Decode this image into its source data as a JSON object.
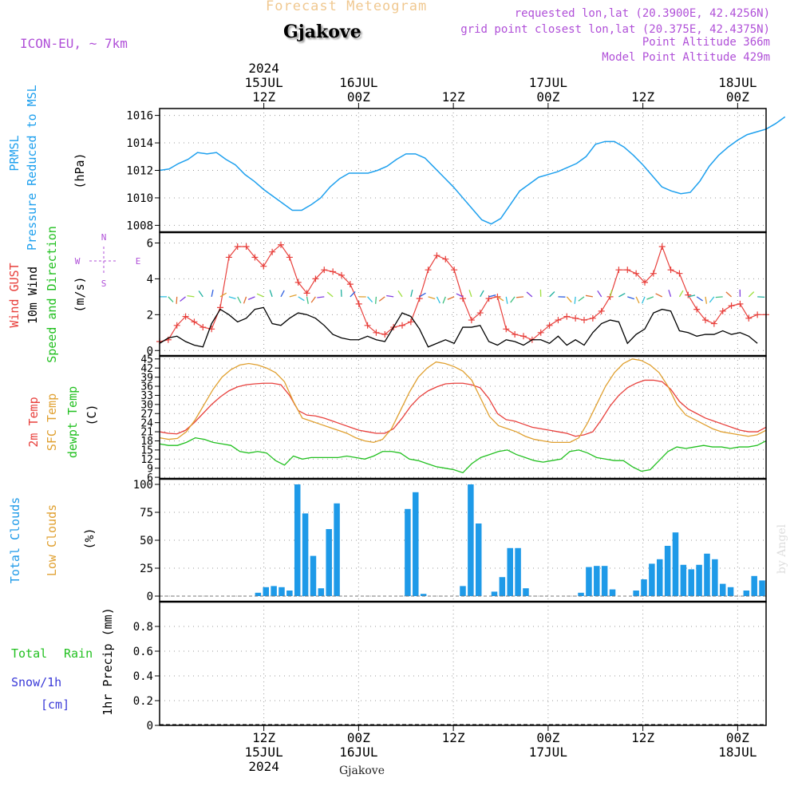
{
  "header": {
    "meteogram_title": "Forecast Meteogram",
    "location": "Gjakove",
    "model": "ICON-EU, ~ 7km",
    "requested": "requested lon,lat (20.3900E, 42.4256N)",
    "gridpoint": "grid point closest lon,lat (20.375E, 42.4375N)",
    "point_altitude": "Point Altitude 366m",
    "model_altitude": "Model Point Altitude 429m",
    "footer_location": "Gjakove",
    "credit": "by Angel"
  },
  "time_axis": {
    "start_hour": 1,
    "end_hour": 65,
    "top_labels": [
      {
        "hour": 12,
        "lines": [
          "2024",
          "15JUL",
          "12Z"
        ]
      },
      {
        "hour": 22,
        "lines": [
          "16JUL",
          "00Z"
        ]
      },
      {
        "hour": 32,
        "lines": [
          "12Z"
        ]
      },
      {
        "hour": 42,
        "lines": [
          "17JUL",
          "00Z"
        ]
      },
      {
        "hour": 52,
        "lines": [
          "12Z"
        ]
      },
      {
        "hour": 62,
        "lines": [
          "18JUL",
          "00Z"
        ]
      }
    ],
    "bottom_labels": [
      {
        "hour": 12,
        "lines": [
          "12Z",
          "15JUL",
          "2024"
        ]
      },
      {
        "hour": 22,
        "lines": [
          "00Z",
          "16JUL"
        ]
      },
      {
        "hour": 32,
        "lines": [
          "12Z"
        ]
      },
      {
        "hour": 42,
        "lines": [
          "00Z",
          "17JUL"
        ]
      },
      {
        "hour": 52,
        "lines": [
          "12Z"
        ]
      },
      {
        "hour": 62,
        "lines": [
          "00Z",
          "18JUL"
        ]
      }
    ]
  },
  "panels": {
    "pressure": {
      "label_lines": [
        "PRMSL",
        "Pressure Reduced to MSL"
      ],
      "unit": "(hPa)",
      "ticks": [
        1008,
        1010,
        1012,
        1014,
        1016
      ],
      "color": "#1ea0ee"
    },
    "wind": {
      "gust_label": "Wind GUST",
      "wind_label": "10m Wind",
      "dir_label": "Speed and Direction",
      "unit": "(m/s)",
      "ticks": [
        0,
        2,
        4,
        6
      ],
      "compass": {
        "n": "N",
        "s": "S",
        "w": "W",
        "e": "E"
      },
      "gust_color": "#e8403c",
      "wind_color": "#000000"
    },
    "temperature": {
      "temp_label": "2m Temp",
      "sfc_label": "SFC Temp",
      "dew_label": "dewpt Temp",
      "unit": "(C)",
      "ticks": [
        6,
        9,
        12,
        15,
        18,
        21,
        24,
        27,
        30,
        33,
        36,
        39,
        42,
        45
      ],
      "temp_color": "#e8403c",
      "sfc_color": "#e0a030",
      "dew_color": "#22c020"
    },
    "clouds": {
      "total_label": "Total Clouds",
      "low_label": "Low Clouds",
      "unit": "(%)",
      "ticks": [
        0,
        25,
        50,
        75,
        100
      ],
      "total_color": "#1e9ae8",
      "low_color": "#e0a030"
    },
    "precip": {
      "total_label": "Total",
      "rain_label": "Rain",
      "snow_label": "Snow/1h",
      "snow_unit": "[cm]",
      "unit": "1hr Precip (mm)",
      "ticks": [
        "0",
        "0.2",
        "0.4",
        "0.6",
        "0.8"
      ]
    }
  },
  "chart_data": [
    {
      "type": "line",
      "title": "PRMSL Pressure Reduced to MSL",
      "ylabel": "(hPa)",
      "ylim": [
        1007.5,
        1016.5
      ],
      "x_start_hour": 1,
      "x_step_hours": 1,
      "series": [
        {
          "name": "PRMSL",
          "values": [
            1012.0,
            1012.1,
            1012.5,
            1012.8,
            1013.3,
            1013.2,
            1013.3,
            1012.8,
            1012.4,
            1011.7,
            1011.2,
            1010.6,
            1010.1,
            1009.6,
            1009.1,
            1009.1,
            1009.5,
            1010.0,
            1010.8,
            1011.4,
            1011.8,
            1011.8,
            1011.8,
            1012.0,
            1012.3,
            1012.8,
            1013.2,
            1013.2,
            1012.9,
            1012.2,
            1011.5,
            1010.8,
            1010.0,
            1009.2,
            1008.4,
            1008.1,
            1008.5,
            1009.5,
            1010.5,
            1011.0,
            1011.5,
            1011.7,
            1011.9,
            1012.2,
            1012.5,
            1013.0,
            1013.9,
            1014.1,
            1014.1,
            1013.7,
            1013.1,
            1012.4,
            1011.6,
            1010.8,
            1010.5,
            1010.3,
            1010.4,
            1011.2,
            1012.3,
            1013.1,
            1013.7,
            1014.2,
            1014.6,
            1014.8,
            1015.0,
            1015.4,
            1015.9
          ]
        }
      ]
    },
    {
      "type": "line",
      "title": "Wind GUST / 10m Wind Speed and Direction",
      "ylabel": "(m/s)",
      "ylim": [
        -0.3,
        6.6
      ],
      "x_start_hour": 1,
      "x_step_hours": 1,
      "series": [
        {
          "name": "Wind GUST",
          "values": [
            0.5,
            0.6,
            1.4,
            1.9,
            1.6,
            1.3,
            1.2,
            2.4,
            5.2,
            5.8,
            5.8,
            5.2,
            4.7,
            5.5,
            5.9,
            5.2,
            3.8,
            3.2,
            4.0,
            4.5,
            4.4,
            4.2,
            3.7,
            2.6,
            1.4,
            1.0,
            0.9,
            1.3,
            1.4,
            1.6,
            2.9,
            4.5,
            5.3,
            5.1,
            4.5,
            2.9,
            1.7,
            2.1,
            2.9,
            3.0,
            1.2,
            0.9,
            0.8,
            0.6,
            1.0,
            1.4,
            1.7,
            1.9,
            1.8,
            1.7,
            1.8,
            2.2,
            3.0,
            4.5,
            4.5,
            4.3,
            3.8,
            4.3,
            5.8,
            4.5,
            4.3,
            3.1,
            2.3,
            1.7,
            1.5,
            2.2,
            2.5,
            2.6,
            1.8,
            2.0,
            2.0
          ]
        },
        {
          "name": "10m Wind",
          "values": [
            0.4,
            0.7,
            0.8,
            0.5,
            0.3,
            0.2,
            1.5,
            2.3,
            2.0,
            1.6,
            1.8,
            2.3,
            2.4,
            1.5,
            1.4,
            1.8,
            2.1,
            2.0,
            1.8,
            1.4,
            0.9,
            0.7,
            0.6,
            0.6,
            0.8,
            0.6,
            0.5,
            1.3,
            2.1,
            1.9,
            1.2,
            0.2,
            0.4,
            0.6,
            0.4,
            1.3,
            1.3,
            1.4,
            0.5,
            0.3,
            0.6,
            0.5,
            0.3,
            0.6,
            0.6,
            0.4,
            0.8,
            0.3,
            0.6,
            0.3,
            1.0,
            1.5,
            1.7,
            1.6,
            0.4,
            0.9,
            1.2,
            2.1,
            2.3,
            2.2,
            1.1,
            1.0,
            0.8,
            0.9,
            0.9,
            1.1,
            0.9,
            1.0,
            0.8,
            0.4
          ]
        }
      ]
    },
    {
      "type": "line",
      "title": "2m Temp / SFC Temp / dewpt Temp",
      "ylabel": "(C)",
      "ylim": [
        5.5,
        46
      ],
      "x_start_hour": 1,
      "x_step_hours": 1,
      "series": [
        {
          "name": "2m Temp",
          "values": [
            21.0,
            20.5,
            20.3,
            21.5,
            24.0,
            27.0,
            30.0,
            32.5,
            34.5,
            35.8,
            36.5,
            36.8,
            37.0,
            37.0,
            36.5,
            33.0,
            28.0,
            26.5,
            26.2,
            25.5,
            24.5,
            23.5,
            22.5,
            21.5,
            21.0,
            20.5,
            20.5,
            22.0,
            25.5,
            29.5,
            32.5,
            34.5,
            35.8,
            36.8,
            37.0,
            37.0,
            36.5,
            35.5,
            32.0,
            27.0,
            25.0,
            24.5,
            23.5,
            22.5,
            22.0,
            21.5,
            21.0,
            20.5,
            19.5,
            20.0,
            21.0,
            25.0,
            29.5,
            33.0,
            35.5,
            37.0,
            38.0,
            38.0,
            37.5,
            35.0,
            31.0,
            28.5,
            27.0,
            25.5,
            24.5,
            23.5,
            22.5,
            21.5,
            21.0,
            21.0,
            22.5
          ]
        },
        {
          "name": "SFC Temp",
          "values": [
            19.0,
            18.5,
            18.8,
            21.0,
            25.0,
            30.0,
            35.0,
            39.0,
            41.5,
            43.0,
            43.5,
            43.0,
            42.0,
            40.5,
            37.5,
            31.0,
            25.5,
            24.5,
            23.5,
            22.5,
            21.5,
            20.5,
            19.0,
            18.0,
            17.5,
            18.5,
            22.0,
            28.0,
            34.0,
            39.0,
            42.0,
            44.0,
            43.5,
            42.5,
            41.0,
            38.0,
            32.0,
            26.0,
            23.0,
            22.0,
            21.0,
            19.5,
            18.5,
            18.0,
            17.5,
            17.5,
            17.5,
            19.0,
            24.0,
            30.0,
            36.0,
            40.5,
            43.5,
            45.0,
            44.5,
            43.0,
            40.5,
            36.0,
            30.0,
            26.5,
            25.0,
            23.5,
            22.0,
            21.0,
            20.5,
            20.0,
            19.5,
            20.0,
            21.5
          ]
        },
        {
          "name": "dewpt Temp",
          "values": [
            17.0,
            16.5,
            16.5,
            17.5,
            19.0,
            18.5,
            17.5,
            17.0,
            16.5,
            14.5,
            14.0,
            14.5,
            14.0,
            11.5,
            10.0,
            13.0,
            12.0,
            12.5,
            12.5,
            12.5,
            12.5,
            13.0,
            12.5,
            12.0,
            13.0,
            14.5,
            14.5,
            14.0,
            12.0,
            11.5,
            10.5,
            9.5,
            9.0,
            8.5,
            7.5,
            10.5,
            12.5,
            13.5,
            14.5,
            15.0,
            13.5,
            12.5,
            11.5,
            11.0,
            11.5,
            12.0,
            14.5,
            15.0,
            14.0,
            12.5,
            12.0,
            11.5,
            11.5,
            9.5,
            8.0,
            8.5,
            11.5,
            14.5,
            16.0,
            15.5,
            16.0,
            16.5,
            16.0,
            16.0,
            15.5,
            16.0,
            16.0,
            16.5,
            18.0
          ]
        }
      ]
    },
    {
      "type": "bar",
      "title": "Total Clouds / Low Clouds",
      "ylabel": "(%)",
      "ylim": [
        -5,
        105
      ],
      "x_start_hour": 1,
      "x_step_hours": 1,
      "series": [
        {
          "name": "Total Clouds",
          "values": [
            0,
            0,
            0,
            0,
            0,
            0,
            0,
            0,
            0,
            0,
            0,
            0,
            3,
            8,
            9,
            8,
            5,
            100,
            74,
            36,
            7,
            60,
            83,
            0,
            0,
            0,
            0,
            0,
            0,
            0,
            0,
            78,
            93,
            2,
            0,
            0,
            0,
            0,
            9,
            100,
            65,
            0,
            4,
            17,
            43,
            43,
            7,
            0,
            0,
            0,
            0,
            0,
            0,
            3,
            26,
            27,
            27,
            6,
            0,
            0,
            5,
            15,
            29,
            33,
            45,
            57,
            28,
            24,
            28,
            38,
            33,
            11,
            8,
            0,
            5,
            18,
            14
          ]
        },
        {
          "name": "Low Clouds",
          "values": [
            0,
            0,
            0,
            0,
            0,
            0,
            0,
            0,
            0,
            0,
            0,
            0,
            0,
            0,
            0,
            0,
            0,
            0,
            0,
            0,
            0,
            0,
            0,
            0,
            0,
            0,
            0,
            0,
            0,
            0,
            0,
            0,
            0,
            0,
            0,
            0,
            0,
            0,
            0,
            0,
            0,
            0,
            0,
            0,
            0,
            0,
            0,
            0,
            0,
            0,
            0,
            0,
            0,
            0,
            0,
            0,
            0,
            0,
            0,
            0,
            0,
            0,
            0,
            0,
            0,
            0,
            0,
            0,
            0,
            0,
            0,
            0,
            0,
            0,
            0,
            0,
            0
          ]
        }
      ]
    },
    {
      "type": "bar",
      "title": "1hr Precip",
      "ylabel": "1hr Precip (mm)",
      "ylim": [
        0,
        1.0
      ],
      "series": [
        {
          "name": "Total Rain",
          "values": []
        },
        {
          "name": "Snow/1h",
          "values": []
        }
      ]
    }
  ]
}
